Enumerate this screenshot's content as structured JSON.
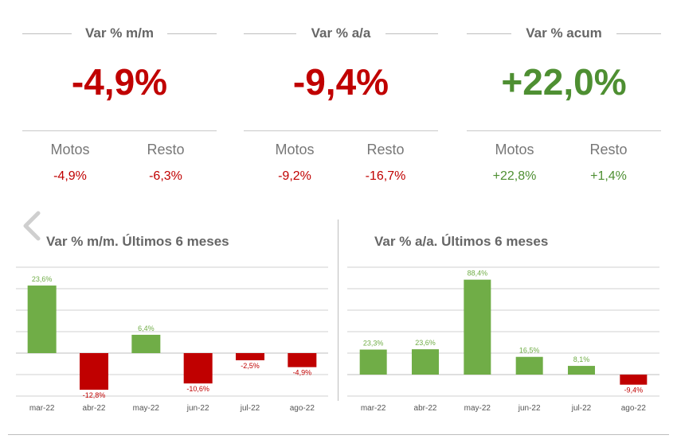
{
  "kpis": [
    {
      "title": "Var % m/m",
      "value": "-4,9%",
      "value_color": "#c00000",
      "subs": [
        {
          "label": "Motos",
          "value": "-4,9%",
          "color": "#c00000"
        },
        {
          "label": "Resto",
          "value": "-6,3%",
          "color": "#c00000"
        }
      ]
    },
    {
      "title": "Var % a/a",
      "value": "-9,4%",
      "value_color": "#c00000",
      "subs": [
        {
          "label": "Motos",
          "value": "-9,2%",
          "color": "#c00000"
        },
        {
          "label": "Resto",
          "value": "-16,7%",
          "color": "#c00000"
        }
      ]
    },
    {
      "title": "Var % acum",
      "value": "+22,0%",
      "value_color": "#4e8f32",
      "subs": [
        {
          "label": "Motos",
          "value": "+22,8%",
          "color": "#4e8f32"
        },
        {
          "label": "Resto",
          "value": "+1,4%",
          "color": "#4e8f32"
        }
      ]
    }
  ],
  "nav": {
    "icon": "chevron-left-icon"
  },
  "colors": {
    "positive": "#70ad47",
    "negative": "#c00000",
    "grid": "#d0d0d0"
  },
  "chart_data": [
    {
      "type": "bar",
      "title": "Var % m/m. Últimos 6 meses",
      "categories": [
        "mar-22",
        "abr-22",
        "may-22",
        "jun-22",
        "jul-22",
        "ago-22"
      ],
      "values": [
        23.6,
        -12.8,
        6.4,
        -10.6,
        -2.5,
        -4.9
      ],
      "data_labels": [
        "23,6%",
        "-12,8%",
        "6,4%",
        "-10,6%",
        "-2,5%",
        "-4,9%"
      ],
      "ylim": [
        -15,
        30
      ],
      "grid": true
    },
    {
      "type": "bar",
      "title": "Var % a/a. Últimos 6 meses",
      "categories": [
        "mar-22",
        "abr-22",
        "may-22",
        "jun-22",
        "jul-22",
        "ago-22"
      ],
      "values": [
        23.3,
        23.6,
        88.4,
        16.5,
        8.1,
        -9.4
      ],
      "data_labels": [
        "23,3%",
        "23,6%",
        "88,4%",
        "16,5%",
        "8,1%",
        "-9,4%"
      ],
      "ylim": [
        -20,
        100
      ],
      "grid": true
    }
  ]
}
